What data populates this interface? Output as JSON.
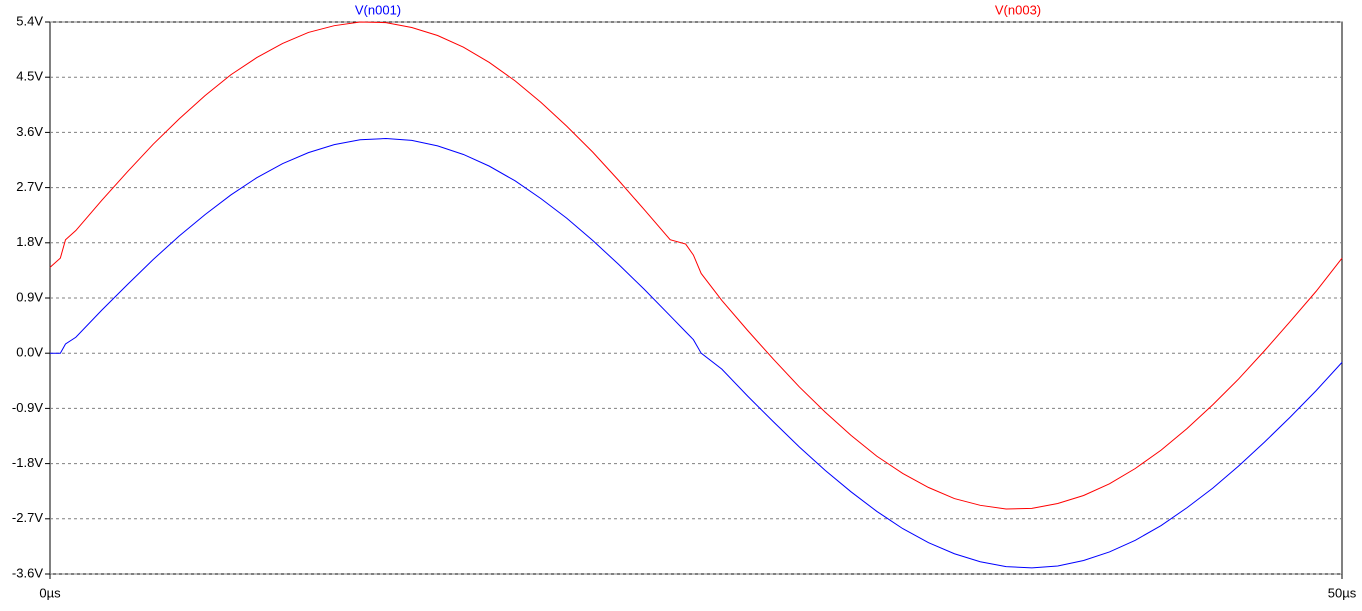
{
  "chart_data": {
    "type": "line",
    "x": [
      0,
      0.4,
      0.6,
      1,
      2,
      3,
      4,
      5,
      6,
      7,
      8,
      9,
      10,
      11,
      12,
      13,
      14,
      15,
      16,
      17,
      18,
      19,
      20,
      21,
      22,
      23,
      24,
      24.6,
      24.9,
      25.2,
      26,
      27,
      28,
      29,
      30,
      31,
      32,
      33,
      34,
      35,
      36,
      37,
      38,
      39,
      40,
      41,
      42,
      43,
      44,
      45,
      46,
      47,
      48,
      49,
      50
    ],
    "series": [
      {
        "name": "V(n001)",
        "color": "#0000ff",
        "values": [
          0,
          0,
          0.15,
          0.26,
          0.7,
          1.12,
          1.53,
          1.91,
          2.26,
          2.58,
          2.86,
          3.09,
          3.27,
          3.4,
          3.48,
          3.5,
          3.47,
          3.38,
          3.24,
          3.05,
          2.81,
          2.52,
          2.2,
          1.84,
          1.45,
          1.04,
          0.61,
          0.35,
          0.22,
          0.0,
          -0.26,
          -0.7,
          -1.12,
          -1.53,
          -1.91,
          -2.26,
          -2.58,
          -2.86,
          -3.09,
          -3.27,
          -3.4,
          -3.48,
          -3.5,
          -3.47,
          -3.38,
          -3.24,
          -3.05,
          -2.81,
          -2.52,
          -2.2,
          -1.84,
          -1.45,
          -1.04,
          -0.61,
          -0.15
        ]
      },
      {
        "name": "V(n003)",
        "color": "#ff0000",
        "values": [
          1.4,
          1.55,
          1.85,
          2.0,
          2.49,
          2.96,
          3.41,
          3.82,
          4.2,
          4.54,
          4.82,
          5.05,
          5.23,
          5.34,
          5.4,
          5.39,
          5.31,
          5.18,
          4.99,
          4.74,
          4.44,
          4.09,
          3.7,
          3.28,
          2.82,
          2.34,
          1.85,
          1.78,
          1.6,
          1.3,
          0.86,
          0.37,
          -0.1,
          -0.55,
          -0.96,
          -1.34,
          -1.68,
          -1.96,
          -2.19,
          -2.37,
          -2.48,
          -2.54,
          -2.53,
          -2.45,
          -2.32,
          -2.13,
          -1.88,
          -1.58,
          -1.23,
          -0.84,
          -0.42,
          0.04,
          0.52,
          1.01,
          1.55
        ]
      }
    ],
    "xlim": [
      0,
      50
    ],
    "xticks": [
      {
        "value": 0,
        "label": "0µs"
      },
      {
        "value": 50,
        "label": "50µs"
      }
    ],
    "ylim": [
      -3.6,
      5.4
    ],
    "yticks": [
      {
        "value": 5.4,
        "label": "5.4V"
      },
      {
        "value": 4.5,
        "label": "4.5V"
      },
      {
        "value": 3.6,
        "label": "3.6V"
      },
      {
        "value": 2.7,
        "label": "2.7V"
      },
      {
        "value": 1.8,
        "label": "1.8V"
      },
      {
        "value": 0.9,
        "label": "0.9V"
      },
      {
        "value": 0,
        "label": "0.0V"
      },
      {
        "value": -0.9,
        "label": "-0.9V"
      },
      {
        "value": -1.8,
        "label": "-1.8V"
      },
      {
        "value": -2.7,
        "label": "-2.7V"
      },
      {
        "value": -3.6,
        "label": "-3.6V"
      }
    ],
    "grid": true
  }
}
